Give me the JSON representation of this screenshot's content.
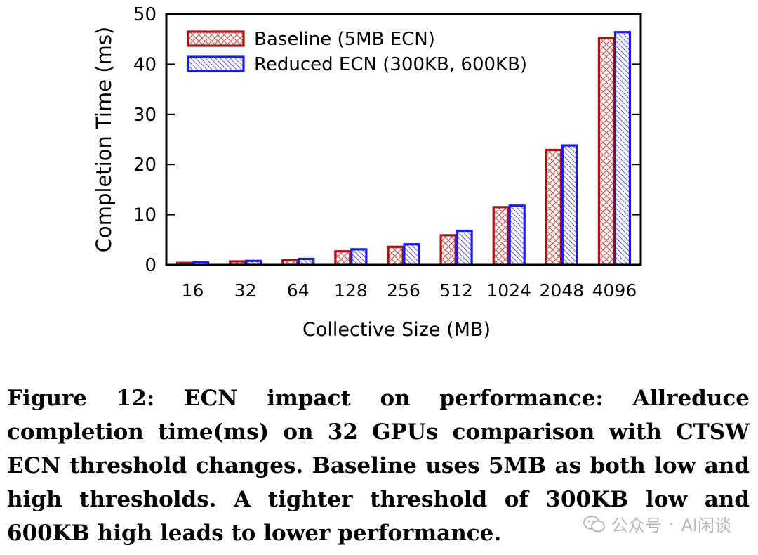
{
  "chart_data": {
    "type": "bar",
    "title": "",
    "xlabel": "Collective Size (MB)",
    "ylabel": "Completion Time (ms)",
    "categories": [
      "16",
      "32",
      "64",
      "128",
      "256",
      "512",
      "1024",
      "2048",
      "4096"
    ],
    "ylim": [
      0,
      50
    ],
    "yticks": [
      0,
      10,
      20,
      30,
      40,
      50
    ],
    "grid": false,
    "legend_position": "top-left",
    "series": [
      {
        "name": "Baseline (5MB ECN)",
        "color": "#b01010",
        "values": [
          0.4,
          0.7,
          0.9,
          2.7,
          3.6,
          5.9,
          11.5,
          22.9,
          45.2
        ]
      },
      {
        "name": "Reduced ECN (300KB, 600KB)",
        "color": "#1a1aee",
        "values": [
          0.5,
          0.8,
          1.2,
          3.1,
          4.1,
          6.8,
          11.8,
          23.8,
          46.4
        ]
      }
    ]
  },
  "caption": {
    "text": "Figure 12: ECN impact on performance: Allreduce completion time(ms) on 32 GPUs comparison with CTSW ECN threshold changes. Baseline uses 5MB as both low and high thresholds. A tighter threshold of 300KB low and 600KB high leads to lower performance."
  },
  "watermark": {
    "source": "公众号",
    "separator": "·",
    "name": "AI闲谈",
    "icon": "wechat-icon"
  }
}
